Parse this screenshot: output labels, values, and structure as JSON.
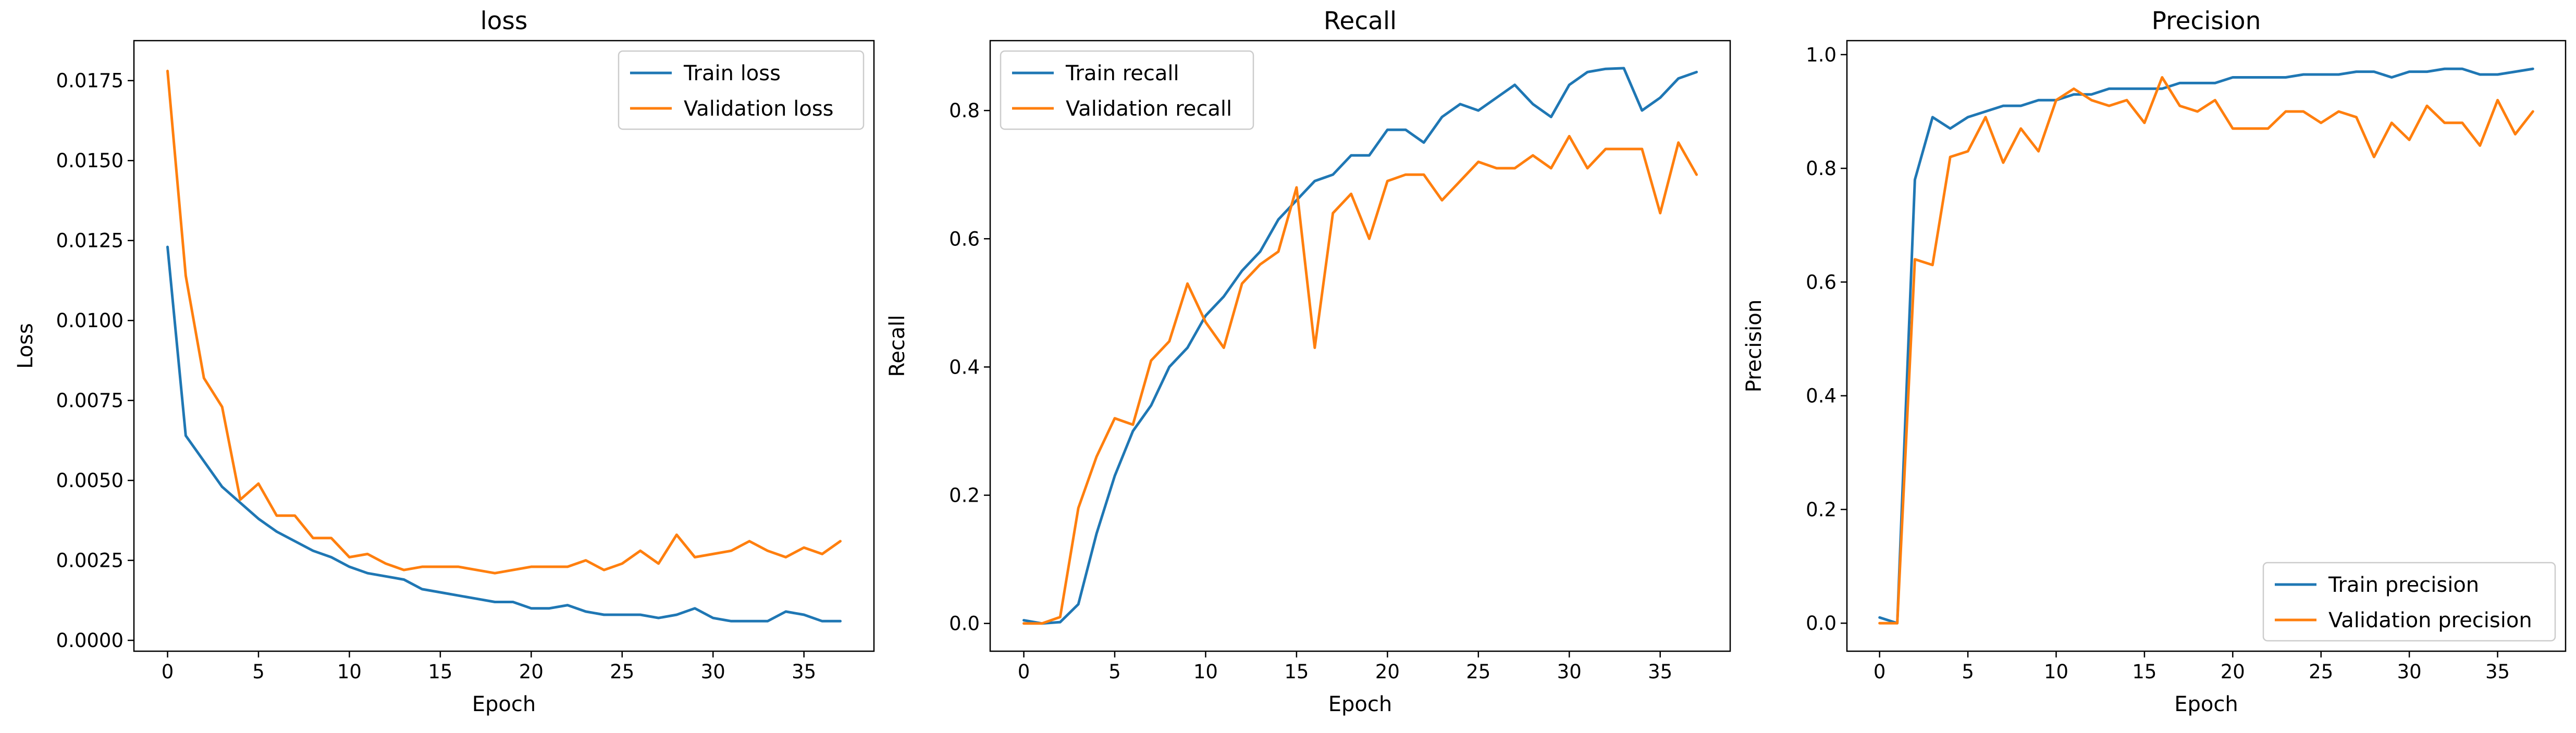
{
  "figure": {
    "columns": 3
  },
  "chart_data": [
    {
      "type": "line",
      "title": "loss",
      "xlabel": "Epoch",
      "ylabel": "Loss",
      "xlim": [
        -1.85,
        38.85
      ],
      "ylim": [
        -0.00034,
        0.01875
      ],
      "xticks": [
        0,
        5,
        10,
        15,
        20,
        25,
        30,
        35
      ],
      "yticks": [
        0.0,
        0.0025,
        0.005,
        0.0075,
        0.01,
        0.0125,
        0.015,
        0.0175
      ],
      "ytick_labels": [
        "0.0000",
        "0.0025",
        "0.0050",
        "0.0075",
        "0.0100",
        "0.0125",
        "0.0150",
        "0.0175"
      ],
      "xtick_labels": [
        "0",
        "5",
        "10",
        "15",
        "20",
        "25",
        "30",
        "35"
      ],
      "grid": false,
      "legend": "top-right",
      "x": [
        0,
        1,
        2,
        3,
        4,
        5,
        6,
        7,
        8,
        9,
        10,
        11,
        12,
        13,
        14,
        15,
        16,
        17,
        18,
        19,
        20,
        21,
        22,
        23,
        24,
        25,
        26,
        27,
        28,
        29,
        30,
        31,
        32,
        33,
        34,
        35,
        36,
        37
      ],
      "series": [
        {
          "name": "Train loss",
          "color": "#1f77b4",
          "values": [
            0.0123,
            0.0064,
            0.0056,
            0.0048,
            0.0043,
            0.0038,
            0.0034,
            0.0031,
            0.0028,
            0.0026,
            0.0023,
            0.0021,
            0.002,
            0.0019,
            0.0016,
            0.0015,
            0.0014,
            0.0013,
            0.0012,
            0.0012,
            0.001,
            0.001,
            0.0011,
            0.0009,
            0.0008,
            0.0008,
            0.0008,
            0.0007,
            0.0008,
            0.001,
            0.0007,
            0.0006,
            0.0006,
            0.0006,
            0.0009,
            0.0008,
            0.0006,
            0.0006
          ]
        },
        {
          "name": "Validation loss",
          "color": "#ff7f0e",
          "values": [
            0.0178,
            0.0114,
            0.0082,
            0.0073,
            0.0044,
            0.0049,
            0.0039,
            0.0039,
            0.0032,
            0.0032,
            0.0026,
            0.0027,
            0.0024,
            0.0022,
            0.0023,
            0.0023,
            0.0023,
            0.0022,
            0.0021,
            0.0022,
            0.0023,
            0.0023,
            0.0023,
            0.0025,
            0.0022,
            0.0024,
            0.0028,
            0.0024,
            0.0033,
            0.0026,
            0.0027,
            0.0028,
            0.0031,
            0.0028,
            0.0026,
            0.0029,
            0.0027,
            0.0031
          ]
        }
      ]
    },
    {
      "type": "line",
      "title": "Recall",
      "xlabel": "Epoch",
      "ylabel": "Recall",
      "xlim": [
        -1.85,
        38.85
      ],
      "ylim": [
        -0.0433,
        0.909
      ],
      "xticks": [
        0,
        5,
        10,
        15,
        20,
        25,
        30,
        35
      ],
      "yticks": [
        0.0,
        0.2,
        0.4,
        0.6,
        0.8
      ],
      "ytick_labels": [
        "0.0",
        "0.2",
        "0.4",
        "0.6",
        "0.8"
      ],
      "xtick_labels": [
        "0",
        "5",
        "10",
        "15",
        "20",
        "25",
        "30",
        "35"
      ],
      "grid": false,
      "legend": "top-left",
      "x": [
        0,
        1,
        2,
        3,
        4,
        5,
        6,
        7,
        8,
        9,
        10,
        11,
        12,
        13,
        14,
        15,
        16,
        17,
        18,
        19,
        20,
        21,
        22,
        23,
        24,
        25,
        26,
        27,
        28,
        29,
        30,
        31,
        32,
        33,
        34,
        35,
        36,
        37
      ],
      "series": [
        {
          "name": "Train recall",
          "color": "#1f77b4",
          "values": [
            0.005,
            0.0,
            0.002,
            0.03,
            0.14,
            0.23,
            0.3,
            0.34,
            0.4,
            0.43,
            0.48,
            0.51,
            0.55,
            0.58,
            0.63,
            0.66,
            0.69,
            0.7,
            0.73,
            0.73,
            0.77,
            0.77,
            0.75,
            0.79,
            0.81,
            0.8,
            0.82,
            0.84,
            0.81,
            0.79,
            0.84,
            0.86,
            0.865,
            0.866,
            0.8,
            0.82,
            0.85,
            0.86
          ]
        },
        {
          "name": "Validation recall",
          "color": "#ff7f0e",
          "values": [
            0.0,
            0.0,
            0.01,
            0.18,
            0.26,
            0.32,
            0.31,
            0.41,
            0.44,
            0.53,
            0.47,
            0.43,
            0.53,
            0.56,
            0.58,
            0.68,
            0.43,
            0.64,
            0.67,
            0.6,
            0.69,
            0.7,
            0.7,
            0.66,
            0.69,
            0.72,
            0.71,
            0.71,
            0.73,
            0.71,
            0.76,
            0.71,
            0.74,
            0.74,
            0.74,
            0.64,
            0.75,
            0.7
          ]
        }
      ]
    },
    {
      "type": "line",
      "title": "Precision",
      "xlabel": "Epoch",
      "ylabel": "Precision",
      "xlim": [
        -1.85,
        38.85
      ],
      "ylim": [
        -0.0493,
        1.0246
      ],
      "xticks": [
        0,
        5,
        10,
        15,
        20,
        25,
        30,
        35
      ],
      "yticks": [
        0.0,
        0.2,
        0.4,
        0.6,
        0.8,
        1.0
      ],
      "ytick_labels": [
        "0.0",
        "0.2",
        "0.4",
        "0.6",
        "0.8",
        "1.0"
      ],
      "xtick_labels": [
        "0",
        "5",
        "10",
        "15",
        "20",
        "25",
        "30",
        "35"
      ],
      "grid": false,
      "legend": "bottom-right",
      "x": [
        0,
        1,
        2,
        3,
        4,
        5,
        6,
        7,
        8,
        9,
        10,
        11,
        12,
        13,
        14,
        15,
        16,
        17,
        18,
        19,
        20,
        21,
        22,
        23,
        24,
        25,
        26,
        27,
        28,
        29,
        30,
        31,
        32,
        33,
        34,
        35,
        36,
        37
      ],
      "series": [
        {
          "name": "Train precision",
          "color": "#1f77b4",
          "values": [
            0.01,
            0.0,
            0.78,
            0.89,
            0.87,
            0.89,
            0.9,
            0.91,
            0.91,
            0.92,
            0.92,
            0.93,
            0.93,
            0.94,
            0.94,
            0.94,
            0.94,
            0.95,
            0.95,
            0.95,
            0.96,
            0.96,
            0.96,
            0.96,
            0.965,
            0.965,
            0.965,
            0.97,
            0.97,
            0.96,
            0.97,
            0.97,
            0.975,
            0.975,
            0.965,
            0.965,
            0.97,
            0.975
          ]
        },
        {
          "name": "Validation precision",
          "color": "#ff7f0e",
          "values": [
            0.0,
            0.0,
            0.64,
            0.63,
            0.82,
            0.83,
            0.89,
            0.81,
            0.87,
            0.83,
            0.92,
            0.94,
            0.92,
            0.91,
            0.92,
            0.88,
            0.96,
            0.91,
            0.9,
            0.92,
            0.87,
            0.87,
            0.87,
            0.9,
            0.9,
            0.88,
            0.9,
            0.89,
            0.82,
            0.88,
            0.85,
            0.91,
            0.88,
            0.88,
            0.84,
            0.92,
            0.86,
            0.9
          ]
        }
      ]
    }
  ]
}
